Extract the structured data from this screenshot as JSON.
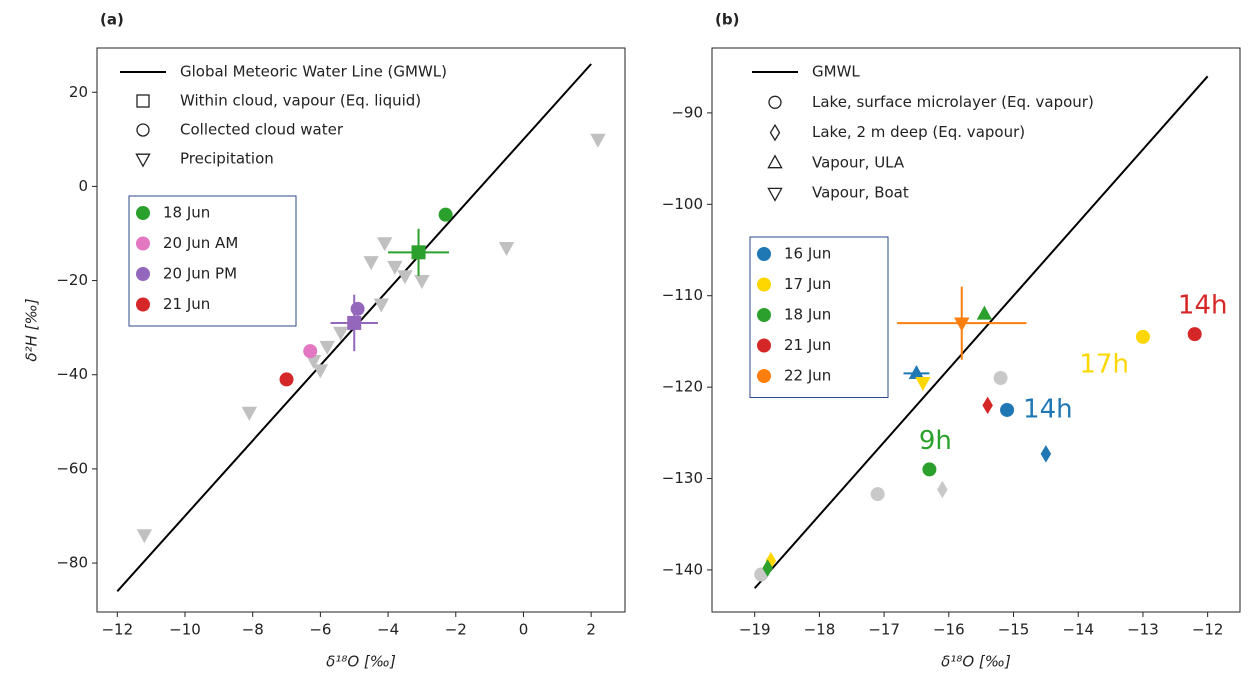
{
  "chart_data": [
    {
      "type": "scatter",
      "title": "(a)",
      "xlabel": "δ¹⁸O [‰]",
      "ylabel": "δ²H [‰]",
      "xlim": [
        -12.6,
        3.0
      ],
      "ylim": [
        -90.4,
        29.4
      ],
      "xticks": [
        {
          "value": -12,
          "label": "−12"
        },
        {
          "value": -10,
          "label": "−10"
        },
        {
          "value": -8,
          "label": "−8"
        },
        {
          "value": -6,
          "label": "−6"
        },
        {
          "value": -4,
          "label": "−4"
        },
        {
          "value": -2,
          "label": "−2"
        },
        0,
        2
      ],
      "yticks": [
        {
          "value": -80,
          "label": "−80"
        },
        {
          "value": -60,
          "label": "−60"
        },
        {
          "value": -40,
          "label": "−40"
        },
        {
          "value": -20,
          "label": "−20"
        },
        0,
        20
      ],
      "shape_legend": [
        {
          "label": "Global Meteoric Water Line (GMWL)",
          "shape": "line"
        },
        {
          "label": "Within cloud, vapour (Eq. liquid)",
          "shape": "square"
        },
        {
          "label": "Collected cloud water",
          "shape": "circle"
        },
        {
          "label": "Precipitation",
          "shape": "tri-down"
        }
      ],
      "color_legend": [
        {
          "label": "18 Jun",
          "color": "#2ca02c"
        },
        {
          "label": "20 Jun  AM",
          "color": "#e377c2"
        },
        {
          "label": "20 Jun  PM",
          "color": "#9467bd"
        },
        {
          "label": "21 Jun",
          "color": "#d62728"
        }
      ],
      "series": [
        {
          "marker": "line",
          "color": "#000000",
          "x": [
            -12,
            2
          ],
          "y": [
            -86,
            26
          ]
        },
        {
          "marker": "tri-down",
          "color": "#c0c0c0",
          "x": [
            2.2,
            -11.2,
            -8.1,
            -0.5,
            -4.1,
            -4.5,
            -3.8,
            -3.5,
            -3.0,
            -4.2,
            -5.4,
            -5.8,
            -6.2,
            -6.0
          ],
          "y": [
            10,
            -74,
            -48,
            -13,
            -12,
            -16,
            -17,
            -19,
            -20,
            -25,
            -31,
            -34,
            -37,
            -39
          ]
        },
        {
          "marker": "circle",
          "color": "#2ca02c",
          "x": [
            -2.3
          ],
          "y": [
            -6
          ]
        },
        {
          "marker": "square",
          "color": "#2ca02c",
          "x": [
            -3.1
          ],
          "y": [
            -14
          ],
          "xerr": [
            0.9
          ],
          "yerr": [
            5
          ]
        },
        {
          "marker": "circle",
          "color": "#e377c2",
          "x": [
            -6.3
          ],
          "y": [
            -35
          ]
        },
        {
          "marker": "circle",
          "color": "#9467bd",
          "x": [
            -4.9
          ],
          "y": [
            -26
          ]
        },
        {
          "marker": "square",
          "color": "#9467bd",
          "x": [
            -5.0
          ],
          "y": [
            -29
          ],
          "xerr": [
            0.7
          ],
          "yerr": [
            6
          ]
        },
        {
          "marker": "circle",
          "color": "#d62728",
          "x": [
            -7.0
          ],
          "y": [
            -41
          ]
        }
      ]
    },
    {
      "type": "scatter",
      "title": "(b)",
      "xlabel": "δ¹⁸O [‰]",
      "xlim": [
        -19.66,
        -11.5
      ],
      "ylim": [
        -144.6,
        -82.9
      ],
      "xticks": [
        {
          "value": -19,
          "label": "−19"
        },
        {
          "value": -18,
          "label": "−18"
        },
        {
          "value": -17,
          "label": "−17"
        },
        {
          "value": -16,
          "label": "−16"
        },
        {
          "value": -15,
          "label": "−15"
        },
        {
          "value": -14,
          "label": "−14"
        },
        {
          "value": -13,
          "label": "−13"
        },
        {
          "value": -12,
          "label": "−12"
        }
      ],
      "yticks": [
        {
          "value": -140,
          "label": "−140"
        },
        {
          "value": -130,
          "label": "−130"
        },
        {
          "value": -120,
          "label": "−120"
        },
        {
          "value": -110,
          "label": "−110"
        },
        {
          "value": -100,
          "label": "−100"
        },
        {
          "value": -90,
          "label": "−90"
        }
      ],
      "shape_legend": [
        {
          "label": "GMWL",
          "shape": "line"
        },
        {
          "label": "Lake, surface microlayer (Eq. vapour)",
          "shape": "circle"
        },
        {
          "label": "Lake, 2 m deep (Eq. vapour)",
          "shape": "diamond"
        },
        {
          "label": "Vapour, ULA",
          "shape": "tri-up"
        },
        {
          "label": "Vapour, Boat",
          "shape": "tri-down"
        }
      ],
      "color_legend": [
        {
          "label": "16 Jun",
          "color": "#1f77b4"
        },
        {
          "label": "17 Jun",
          "color": "#ffd700"
        },
        {
          "label": "18 Jun",
          "color": "#2ca02c"
        },
        {
          "label": "21 Jun",
          "color": "#d62728"
        },
        {
          "label": "22 Jun",
          "color": "#ff7f0e"
        }
      ],
      "series": [
        {
          "marker": "line",
          "color": "#000000",
          "x": [
            -19,
            -12
          ],
          "y": [
            -142,
            -86
          ]
        },
        {
          "marker": "circle",
          "color": "#c8c8c8",
          "x": [
            -18.9,
            -17.1,
            -15.2
          ],
          "y": [
            -140.5,
            -131.7,
            -119
          ]
        },
        {
          "marker": "diamond",
          "color": "#c8c8c8",
          "x": [
            -16.1
          ],
          "y": [
            -131.2
          ]
        },
        {
          "marker": "circle",
          "color": "#1f77b4",
          "x": [
            -15.1
          ],
          "y": [
            -122.5
          ],
          "labels": [
            "14h"
          ]
        },
        {
          "marker": "diamond",
          "color": "#1f77b4",
          "x": [
            -14.5
          ],
          "y": [
            -127.3
          ]
        },
        {
          "marker": "tri-up",
          "color": "#1f77b4",
          "x": [
            -16.5
          ],
          "y": [
            -118.5
          ],
          "xerr": [
            0.2
          ],
          "yerr": [
            0.6
          ]
        },
        {
          "marker": "circle",
          "color": "#ffd700",
          "x": [
            -13.0
          ],
          "y": [
            -114.5
          ],
          "labels": [
            "17h"
          ]
        },
        {
          "marker": "tri-down",
          "color": "#ffd700",
          "x": [
            -16.4
          ],
          "y": [
            -119.5
          ]
        },
        {
          "marker": "diamond",
          "color": "#ffd700",
          "x": [
            -18.75
          ],
          "y": [
            -139
          ]
        },
        {
          "marker": "circle",
          "color": "#2ca02c",
          "x": [
            -16.3
          ],
          "y": [
            -129
          ],
          "labels": [
            "9h"
          ]
        },
        {
          "marker": "tri-up",
          "color": "#2ca02c",
          "x": [
            -15.45
          ],
          "y": [
            -112
          ]
        },
        {
          "marker": "diamond",
          "color": "#2ca02c",
          "x": [
            -18.8
          ],
          "y": [
            -139.8
          ]
        },
        {
          "marker": "circle",
          "color": "#d62728",
          "x": [
            -12.2
          ],
          "y": [
            -114.2
          ],
          "labels": [
            "14h"
          ]
        },
        {
          "marker": "diamond",
          "color": "#d62728",
          "x": [
            -15.4
          ],
          "y": [
            -122
          ]
        },
        {
          "marker": "tri-down",
          "color": "#ff7f0e",
          "x": [
            -15.8
          ],
          "y": [
            -113
          ],
          "xerr": [
            1.0
          ],
          "yerr": [
            4
          ]
        }
      ]
    }
  ]
}
